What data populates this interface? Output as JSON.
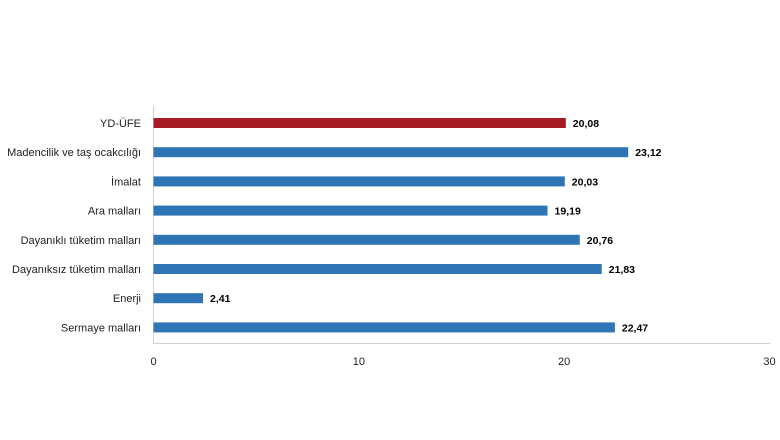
{
  "chart_data": {
    "type": "bar",
    "orientation": "horizontal",
    "categories": [
      "YD-ÜFE",
      "Madencilik ve taş ocakcılığı",
      "İmalat",
      "Ara malları",
      "Dayanıklı tüketim malları",
      "Dayanıksız tüketim malları",
      "Enerji",
      "Sermaye malları"
    ],
    "values": [
      20.08,
      23.12,
      20.03,
      19.19,
      20.76,
      21.83,
      2.41,
      22.47
    ],
    "value_labels": [
      "20,08",
      "23,12",
      "20,03",
      "19,19",
      "20,76",
      "21,83",
      "2,41",
      "22,47"
    ],
    "bar_colors": [
      "#a51c24",
      "#2e75b6",
      "#2e75b6",
      "#2e75b6",
      "#2e75b6",
      "#2e75b6",
      "#2e75b6",
      "#2e75b6"
    ],
    "xlim": [
      0,
      30
    ],
    "xticks": [
      0,
      10,
      20,
      30
    ],
    "xtick_labels": [
      "0",
      "10",
      "20",
      "30"
    ],
    "title": "",
    "xlabel": "",
    "ylabel": "",
    "grid": false,
    "legend": "none"
  }
}
